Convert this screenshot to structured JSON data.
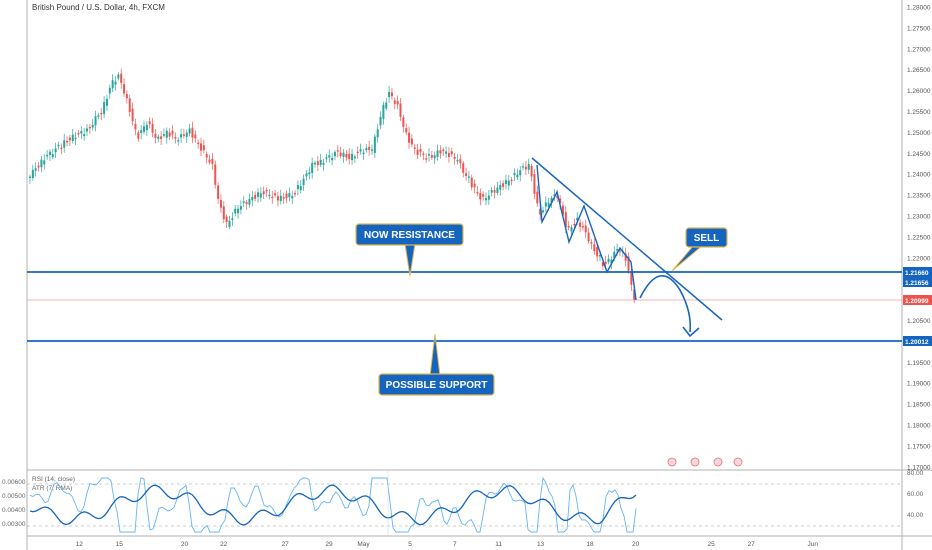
{
  "header": {
    "title": "British Pound / U.S. Dollar, 4h, FXCM"
  },
  "price_axis": {
    "ticks": [
      "1.28000",
      "1.27500",
      "1.27000",
      "1.26500",
      "1.26000",
      "1.25500",
      "1.25000",
      "1.24500",
      "1.24000",
      "1.23500",
      "1.23000",
      "1.22500",
      "1.22000",
      "1.21500",
      "1.21000",
      "1.20500",
      "1.20000",
      "1.19500",
      "1.19000",
      "1.18500",
      "1.18000",
      "1.17500",
      "1.17000"
    ]
  },
  "time_axis": {
    "ticks": [
      "12",
      "15",
      "20",
      "22",
      "27",
      "29",
      "May",
      "5",
      "7",
      "11",
      "13",
      "18",
      "20",
      "25",
      "27",
      "Jun"
    ]
  },
  "price_tags": {
    "resistance_1": "1.21660",
    "resistance_2": "1.21656",
    "current": "1.20999",
    "support": "1.20012"
  },
  "annotations": {
    "now_resistance": "NOW RESISTANCE",
    "sell": "SELL",
    "possible_support": "POSSIBLE SUPPORT"
  },
  "indicator": {
    "rsi_label": "RSI (14, close)",
    "atr_label": "ATR (7, RMA)",
    "left_ticks": [
      "0.00600",
      "0.00500",
      "0.00400",
      "0.00300"
    ],
    "right_ticks": [
      "80.00",
      "60.00",
      "40.00"
    ]
  },
  "colors": {
    "bull": "#26a69a",
    "bear": "#ef5350",
    "level": "#1565c0",
    "current": "#ef5350",
    "callout": "#1565c0",
    "callout_border": "#e0b84a"
  }
}
